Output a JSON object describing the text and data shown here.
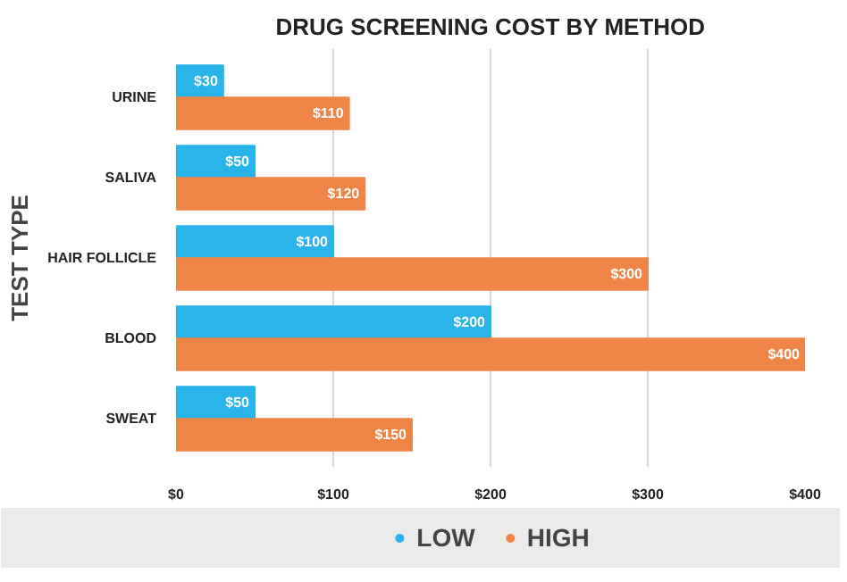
{
  "chart_data": {
    "type": "bar",
    "orientation": "horizontal",
    "title": "DRUG SCREENING COST BY METHOD",
    "ylabel": "TEST TYPE",
    "categories": [
      "URINE",
      "SALIVA",
      "HAIR FOLLICLE",
      "BLOOD",
      "SWEAT"
    ],
    "series": [
      {
        "name": "LOW",
        "color": "#29b5ea",
        "values": [
          30,
          50,
          100,
          200,
          50
        ],
        "value_labels": [
          "$30",
          "$50",
          "$100",
          "$200",
          "$50"
        ]
      },
      {
        "name": "HIGH",
        "color": "#ee8446",
        "values": [
          110,
          120,
          300,
          400,
          150
        ],
        "value_labels": [
          "$110",
          "$120",
          "$300",
          "$400",
          "$150"
        ]
      }
    ],
    "xlim": [
      0,
      400
    ],
    "xticks": [
      {
        "value": 0,
        "label": "$0"
      },
      {
        "value": 100,
        "label": "$100"
      },
      {
        "value": 200,
        "label": "$200"
      },
      {
        "value": 300,
        "label": "$300"
      },
      {
        "value": 400,
        "label": "$400"
      }
    ],
    "grid": "x",
    "legend": "bottom"
  }
}
